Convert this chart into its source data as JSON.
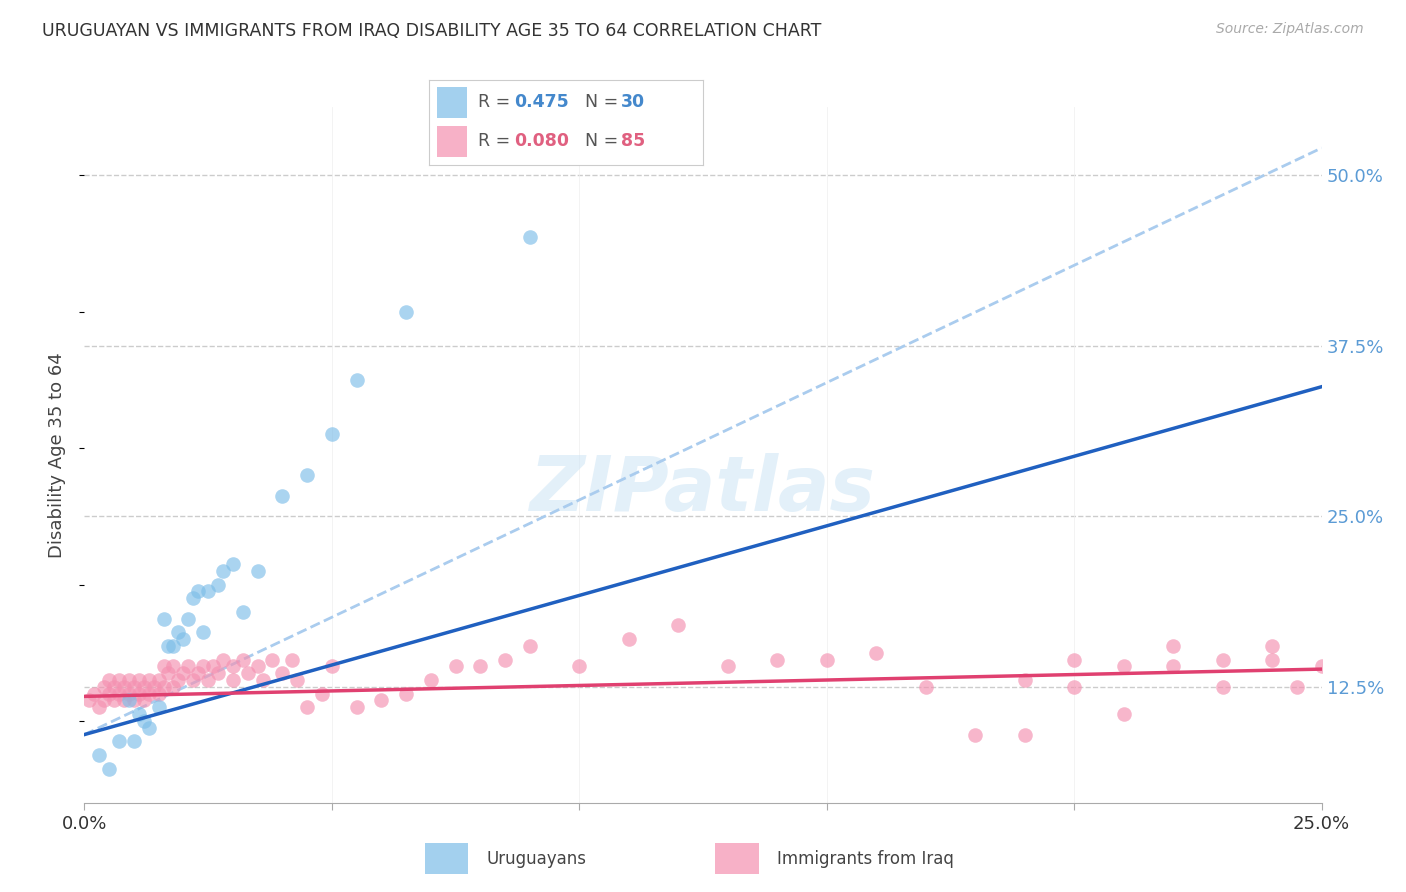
{
  "title": "URUGUAYAN VS IMMIGRANTS FROM IRAQ DISABILITY AGE 35 TO 64 CORRELATION CHART",
  "source": "Source: ZipAtlas.com",
  "ylabel": "Disability Age 35 to 64",
  "xlim": [
    0.0,
    0.25
  ],
  "ylim": [
    0.04,
    0.55
  ],
  "xticks": [
    0.0,
    0.05,
    0.1,
    0.15,
    0.2,
    0.25
  ],
  "xtick_labels": [
    "0.0%",
    "",
    "",
    "",
    "",
    "25.0%"
  ],
  "ytick_labels_right": [
    "12.5%",
    "25.0%",
    "37.5%",
    "50.0%"
  ],
  "ytick_vals_right": [
    0.125,
    0.25,
    0.375,
    0.5
  ],
  "background_color": "#ffffff",
  "watermark": "ZIPatlas",
  "grid_color": "#cccccc",
  "color_blue": "#7dbde8",
  "color_pink": "#f490b0",
  "color_blue_line": "#2060c0",
  "color_pink_line": "#e04070",
  "color_dashed_line": "#aaccee",
  "label_uruguayans": "Uruguayans",
  "label_iraq": "Immigrants from Iraq",
  "uruguayan_x": [
    0.003,
    0.005,
    0.007,
    0.009,
    0.01,
    0.011,
    0.012,
    0.013,
    0.015,
    0.016,
    0.017,
    0.018,
    0.019,
    0.02,
    0.021,
    0.022,
    0.023,
    0.024,
    0.025,
    0.027,
    0.028,
    0.03,
    0.032,
    0.035,
    0.04,
    0.045,
    0.05,
    0.055,
    0.065,
    0.09
  ],
  "uruguayan_y": [
    0.075,
    0.065,
    0.085,
    0.115,
    0.085,
    0.105,
    0.1,
    0.095,
    0.11,
    0.175,
    0.155,
    0.155,
    0.165,
    0.16,
    0.175,
    0.19,
    0.195,
    0.165,
    0.195,
    0.2,
    0.21,
    0.215,
    0.18,
    0.21,
    0.265,
    0.28,
    0.31,
    0.35,
    0.4,
    0.455
  ],
  "iraq_x": [
    0.001,
    0.002,
    0.003,
    0.004,
    0.004,
    0.005,
    0.005,
    0.006,
    0.006,
    0.007,
    0.007,
    0.008,
    0.008,
    0.009,
    0.009,
    0.01,
    0.01,
    0.011,
    0.011,
    0.012,
    0.012,
    0.013,
    0.013,
    0.014,
    0.015,
    0.015,
    0.016,
    0.016,
    0.017,
    0.018,
    0.018,
    0.019,
    0.02,
    0.021,
    0.022,
    0.023,
    0.024,
    0.025,
    0.026,
    0.027,
    0.028,
    0.03,
    0.03,
    0.032,
    0.033,
    0.035,
    0.036,
    0.038,
    0.04,
    0.042,
    0.043,
    0.045,
    0.048,
    0.05,
    0.055,
    0.06,
    0.065,
    0.07,
    0.075,
    0.08,
    0.085,
    0.09,
    0.1,
    0.11,
    0.12,
    0.13,
    0.14,
    0.15,
    0.16,
    0.17,
    0.18,
    0.19,
    0.2,
    0.21,
    0.22,
    0.23,
    0.24,
    0.245,
    0.25,
    0.24,
    0.23,
    0.22,
    0.21,
    0.2,
    0.19
  ],
  "iraq_y": [
    0.115,
    0.12,
    0.11,
    0.125,
    0.115,
    0.13,
    0.12,
    0.125,
    0.115,
    0.13,
    0.12,
    0.125,
    0.115,
    0.13,
    0.12,
    0.125,
    0.115,
    0.13,
    0.12,
    0.125,
    0.115,
    0.13,
    0.12,
    0.125,
    0.13,
    0.12,
    0.14,
    0.125,
    0.135,
    0.14,
    0.125,
    0.13,
    0.135,
    0.14,
    0.13,
    0.135,
    0.14,
    0.13,
    0.14,
    0.135,
    0.145,
    0.14,
    0.13,
    0.145,
    0.135,
    0.14,
    0.13,
    0.145,
    0.135,
    0.145,
    0.13,
    0.11,
    0.12,
    0.14,
    0.11,
    0.115,
    0.12,
    0.13,
    0.14,
    0.14,
    0.145,
    0.155,
    0.14,
    0.16,
    0.17,
    0.14,
    0.145,
    0.145,
    0.15,
    0.125,
    0.09,
    0.09,
    0.145,
    0.14,
    0.155,
    0.125,
    0.145,
    0.125,
    0.14,
    0.155,
    0.145,
    0.14,
    0.105,
    0.125,
    0.13
  ],
  "uru_line_x0": 0.0,
  "uru_line_x1": 0.25,
  "uru_line_y0": 0.09,
  "uru_line_y1": 0.345,
  "iraq_line_x0": 0.0,
  "iraq_line_x1": 0.25,
  "iraq_line_y0": 0.118,
  "iraq_line_y1": 0.138,
  "dash_line_x0": 0.0,
  "dash_line_x1": 0.25,
  "dash_line_y0": 0.09,
  "dash_line_y1": 0.52
}
